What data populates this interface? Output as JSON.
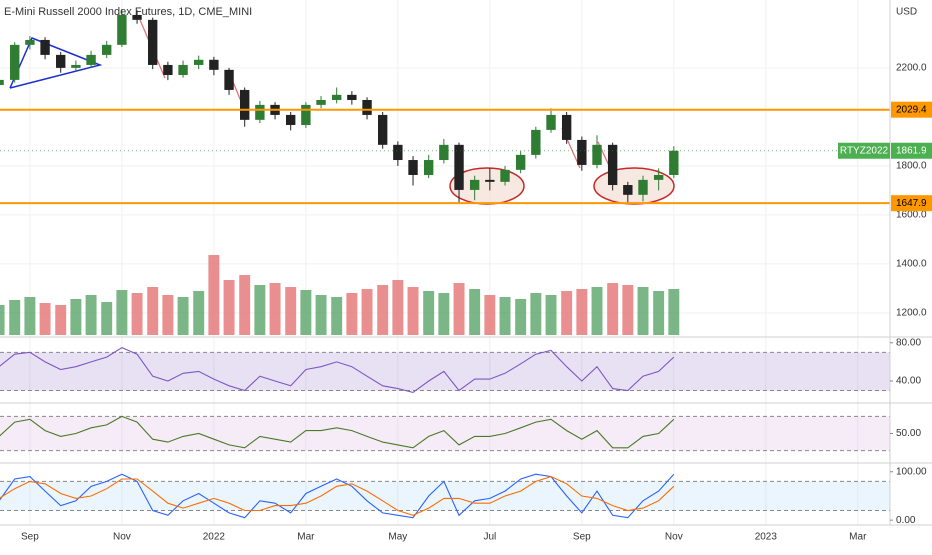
{
  "chart_data": {
    "type": "candlestick",
    "title": "E-Mini Russell 2000 Index Futures, 1D, CME_MINI",
    "currency": "USD",
    "symbol": "RTYZ2022",
    "grid": true,
    "up_color": "#2e7d32",
    "down_color": "#222222",
    "volume_up_color": "#5aa469",
    "volume_down_color": "#e57373",
    "xlim": [
      -0.65,
      18.7
    ],
    "xticks": [
      {
        "value": 0,
        "label": "Sep"
      },
      {
        "value": 2,
        "label": "Nov"
      },
      {
        "value": 4,
        "label": "2022"
      },
      {
        "value": 6,
        "label": "Mar"
      },
      {
        "value": 8,
        "label": "May"
      },
      {
        "value": 10,
        "label": "Jul"
      },
      {
        "value": 12,
        "label": "Sep"
      },
      {
        "value": 14,
        "label": "Nov"
      },
      {
        "value": 16,
        "label": "2023"
      },
      {
        "value": 18,
        "label": "Mar"
      }
    ],
    "ylim": [
      1110,
      2477
    ],
    "yticks": [
      {
        "value": 1200,
        "label": "1200.0"
      },
      {
        "value": 1400,
        "label": "1400.0"
      },
      {
        "value": 1600,
        "label": "1600.0"
      },
      {
        "value": 1800,
        "label": "1800.0"
      },
      {
        "value": 2200,
        "label": "2200.0"
      }
    ],
    "levels": [
      2029.4,
      1647.9
    ],
    "level_color": "#ff9800",
    "x": [
      -0.67,
      -0.33,
      0,
      0.33,
      0.67,
      1,
      1.33,
      1.67,
      2,
      2.33,
      2.67,
      3,
      3.33,
      3.67,
      4,
      4.33,
      4.67,
      5,
      5.33,
      5.67,
      6,
      6.33,
      6.67,
      7,
      7.33,
      7.67,
      8,
      8.33,
      8.67,
      9,
      9.33,
      9.67,
      10,
      10.33,
      10.67,
      11,
      11.33,
      11.67,
      12,
      12.33,
      12.67,
      13,
      13.33,
      13.67,
      14
    ],
    "open": [
      2130,
      2151,
      2294,
      2314,
      2253,
      2200,
      2212,
      2253,
      2294,
      2416,
      2396,
      2212,
      2171,
      2212,
      2233,
      2192,
      2110,
      1988,
      2049,
      2008,
      1967,
      2049,
      2069,
      2090,
      2069,
      2008,
      1886,
      1824,
      1763,
      1824,
      1886,
      1702,
      1743,
      1735,
      1784,
      1845,
      1947,
      2008,
      1906,
      1804,
      1886,
      1722,
      1682,
      1743,
      1763
    ],
    "high": [
      2175,
      2305,
      2330,
      2325,
      2265,
      2230,
      2270,
      2310,
      2440,
      2435,
      2405,
      2225,
      2230,
      2250,
      2245,
      2200,
      2120,
      2065,
      2060,
      2020,
      2060,
      2085,
      2120,
      2105,
      2080,
      2020,
      1900,
      1840,
      1845,
      1910,
      1895,
      1760,
      1790,
      1800,
      1860,
      1960,
      2035,
      2020,
      1920,
      1925,
      1895,
      1735,
      1760,
      1790,
      1880
    ],
    "low": [
      2110,
      2140,
      2275,
      2235,
      2180,
      2185,
      2200,
      2240,
      2285,
      2380,
      2195,
      2150,
      2160,
      2195,
      2170,
      2090,
      1960,
      1975,
      1990,
      1945,
      1955,
      2035,
      2055,
      2050,
      1990,
      1870,
      1800,
      1720,
      1750,
      1810,
      1650,
      1660,
      1700,
      1720,
      1770,
      1830,
      1935,
      1890,
      1780,
      1790,
      1700,
      1645,
      1655,
      1700,
      1750
    ],
    "close": [
      2151,
      2294,
      2314,
      2253,
      2200,
      2212,
      2253,
      2294,
      2416,
      2396,
      2212,
      2171,
      2212,
      2233,
      2192,
      2110,
      1988,
      2049,
      2008,
      1967,
      2049,
      2069,
      2090,
      2069,
      2008,
      1886,
      1824,
      1763,
      1824,
      1886,
      1702,
      1743,
      1735,
      1784,
      1845,
      1947,
      2008,
      1906,
      1804,
      1886,
      1722,
      1682,
      1743,
      1763,
      1861.9
    ],
    "volume": [
      30,
      35,
      38,
      32,
      30,
      36,
      40,
      33,
      45,
      42,
      48,
      40,
      38,
      44,
      80,
      55,
      60,
      50,
      52,
      48,
      45,
      40,
      38,
      42,
      46,
      50,
      55,
      48,
      44,
      42,
      52,
      46,
      40,
      38,
      36,
      42,
      40,
      44,
      46,
      48,
      52,
      50,
      48,
      44,
      46
    ],
    "indicators": [
      {
        "type": "line",
        "ylim": [
          18,
          85
        ],
        "yticks": [
          {
            "value": 80,
            "label": "80.00"
          },
          {
            "value": 40,
            "label": "40.00"
          }
        ],
        "bands": [
          30,
          70
        ],
        "band_color": "#7e57c2",
        "series": [
          {
            "color": "#7e57c2",
            "values": [
              55,
              68,
              70,
              60,
              52,
              55,
              60,
              65,
              75,
              68,
              45,
              40,
              48,
              50,
              42,
              35,
              30,
              45,
              40,
              35,
              52,
              55,
              60,
              55,
              45,
              35,
              32,
              28,
              40,
              50,
              30,
              42,
              42,
              48,
              58,
              68,
              72,
              55,
              40,
              55,
              32,
              30,
              45,
              50,
              65
            ]
          }
        ]
      },
      {
        "type": "line",
        "ylim": [
          0,
          100
        ],
        "yticks": [
          {
            "value": 50,
            "label": "50.00"
          }
        ],
        "bands": [
          20,
          80
        ],
        "band_color": "#ce93d8",
        "series": [
          {
            "color": "#4a7a26",
            "values": [
              45,
              70,
              75,
              55,
              45,
              50,
              60,
              65,
              80,
              70,
              40,
              35,
              45,
              50,
              40,
              30,
              25,
              45,
              40,
              35,
              55,
              55,
              60,
              55,
              45,
              35,
              30,
              25,
              45,
              55,
              30,
              45,
              45,
              50,
              60,
              70,
              75,
              55,
              40,
              55,
              25,
              25,
              45,
              50,
              75
            ]
          }
        ]
      },
      {
        "type": "line",
        "ylim": [
          -10,
          116
        ],
        "yticks": [
          {
            "value": 100,
            "label": "100.00"
          },
          {
            "value": 0,
            "label": "0.00"
          }
        ],
        "bands": [
          20,
          80
        ],
        "band_color": "#90caf9",
        "series": [
          {
            "color": "#2962ff",
            "values": [
              40,
              85,
              90,
              60,
              30,
              40,
              70,
              80,
              95,
              80,
              20,
              10,
              40,
              55,
              35,
              15,
              5,
              40,
              35,
              15,
              55,
              70,
              85,
              70,
              40,
              15,
              10,
              5,
              50,
              80,
              10,
              40,
              45,
              60,
              85,
              95,
              90,
              50,
              15,
              60,
              10,
              5,
              40,
              60,
              95
            ]
          },
          {
            "color": "#ff6d00",
            "values": [
              45,
              65,
              80,
              75,
              55,
              45,
              50,
              65,
              85,
              85,
              60,
              35,
              25,
              35,
              45,
              35,
              20,
              20,
              30,
              30,
              35,
              50,
              70,
              75,
              60,
              40,
              20,
              10,
              25,
              45,
              45,
              35,
              35,
              50,
              60,
              80,
              90,
              75,
              50,
              45,
              30,
              20,
              25,
              40,
              70
            ]
          }
        ]
      }
    ]
  }
}
